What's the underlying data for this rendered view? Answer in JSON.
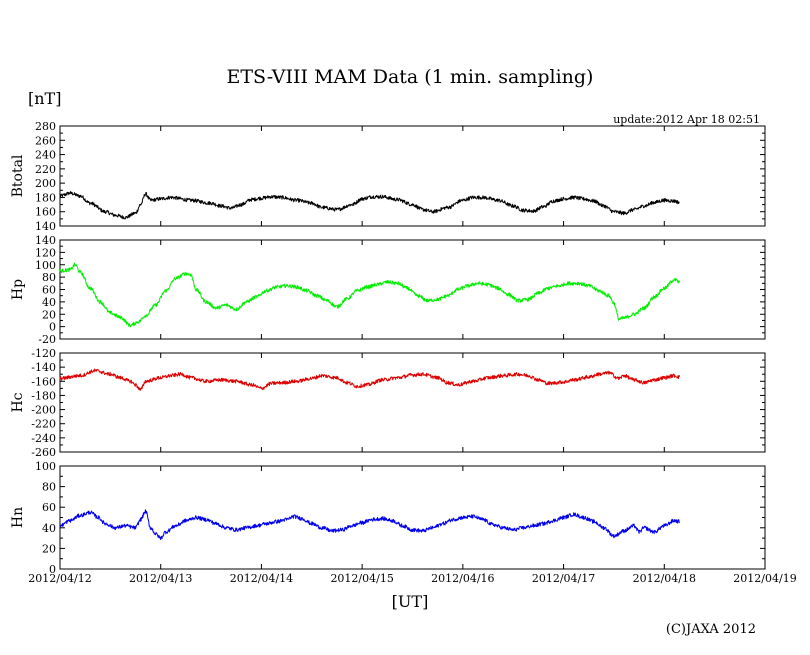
{
  "chart_data": {
    "type": "line",
    "title": "ETS-VIII MAM Data (1 min. sampling)",
    "unit_label": "[nT]",
    "update_text": "update:2012 Apr 18 02:51",
    "xlabel": "[UT]",
    "copyright": "(C)JAXA 2012",
    "x_ticks": [
      "2012/04/12",
      "2012/04/13",
      "2012/04/14",
      "2012/04/15",
      "2012/04/16",
      "2012/04/17",
      "2012/04/18",
      "2012/04/19"
    ],
    "x_range_days": [
      0,
      7
    ],
    "panels": [
      {
        "name": "Btotal",
        "color": "#000000",
        "ylim": [
          140,
          280
        ],
        "yticks": [
          140,
          160,
          180,
          200,
          220,
          240,
          260,
          280
        ],
        "points": [
          [
            0,
            182
          ],
          [
            0.1,
            186
          ],
          [
            0.2,
            182
          ],
          [
            0.3,
            172
          ],
          [
            0.45,
            160
          ],
          [
            0.55,
            155
          ],
          [
            0.65,
            152
          ],
          [
            0.75,
            158
          ],
          [
            0.8,
            170
          ],
          [
            0.85,
            185
          ],
          [
            0.9,
            176
          ],
          [
            1.0,
            178
          ],
          [
            1.1,
            180
          ],
          [
            1.3,
            176
          ],
          [
            1.5,
            172
          ],
          [
            1.6,
            168
          ],
          [
            1.7,
            165
          ],
          [
            1.8,
            170
          ],
          [
            1.9,
            177
          ],
          [
            2.0,
            179
          ],
          [
            2.1,
            181
          ],
          [
            2.2,
            180
          ],
          [
            2.35,
            176
          ],
          [
            2.5,
            172
          ],
          [
            2.6,
            166
          ],
          [
            2.75,
            163
          ],
          [
            2.9,
            170
          ],
          [
            3.0,
            178
          ],
          [
            3.1,
            181
          ],
          [
            3.2,
            181
          ],
          [
            3.35,
            177
          ],
          [
            3.5,
            170
          ],
          [
            3.6,
            163
          ],
          [
            3.7,
            160
          ],
          [
            3.85,
            166
          ],
          [
            4.0,
            176
          ],
          [
            4.1,
            180
          ],
          [
            4.2,
            180
          ],
          [
            4.35,
            176
          ],
          [
            4.5,
            168
          ],
          [
            4.6,
            162
          ],
          [
            4.7,
            161
          ],
          [
            4.8,
            167
          ],
          [
            4.9,
            175
          ],
          [
            5.0,
            178
          ],
          [
            5.1,
            180
          ],
          [
            5.2,
            178
          ],
          [
            5.3,
            175
          ],
          [
            5.4,
            168
          ],
          [
            5.5,
            160
          ],
          [
            5.6,
            158
          ],
          [
            5.7,
            163
          ],
          [
            5.8,
            168
          ],
          [
            5.9,
            173
          ],
          [
            6.0,
            176
          ],
          [
            6.1,
            175
          ],
          [
            6.15,
            173
          ]
        ]
      },
      {
        "name": "Hp",
        "color": "#00ee00",
        "ylim": [
          -20,
          140
        ],
        "yticks": [
          -20,
          0,
          20,
          40,
          60,
          80,
          100,
          120,
          140
        ],
        "points": [
          [
            0,
            90
          ],
          [
            0.1,
            92
          ],
          [
            0.15,
            100
          ],
          [
            0.2,
            88
          ],
          [
            0.3,
            62
          ],
          [
            0.4,
            40
          ],
          [
            0.5,
            22
          ],
          [
            0.6,
            15
          ],
          [
            0.7,
            2
          ],
          [
            0.78,
            8
          ],
          [
            0.85,
            18
          ],
          [
            0.95,
            35
          ],
          [
            1.05,
            58
          ],
          [
            1.15,
            78
          ],
          [
            1.25,
            86
          ],
          [
            1.3,
            84
          ],
          [
            1.35,
            60
          ],
          [
            1.45,
            40
          ],
          [
            1.55,
            30
          ],
          [
            1.65,
            35
          ],
          [
            1.75,
            28
          ],
          [
            1.85,
            40
          ],
          [
            1.95,
            48
          ],
          [
            2.05,
            58
          ],
          [
            2.15,
            64
          ],
          [
            2.25,
            66
          ],
          [
            2.35,
            64
          ],
          [
            2.45,
            58
          ],
          [
            2.55,
            50
          ],
          [
            2.65,
            42
          ],
          [
            2.75,
            32
          ],
          [
            2.85,
            45
          ],
          [
            2.95,
            58
          ],
          [
            3.05,
            64
          ],
          [
            3.15,
            68
          ],
          [
            3.25,
            72
          ],
          [
            3.35,
            70
          ],
          [
            3.45,
            62
          ],
          [
            3.55,
            50
          ],
          [
            3.65,
            42
          ],
          [
            3.75,
            44
          ],
          [
            3.85,
            50
          ],
          [
            3.95,
            60
          ],
          [
            4.05,
            66
          ],
          [
            4.15,
            70
          ],
          [
            4.25,
            68
          ],
          [
            4.35,
            62
          ],
          [
            4.45,
            52
          ],
          [
            4.55,
            42
          ],
          [
            4.65,
            44
          ],
          [
            4.75,
            54
          ],
          [
            4.85,
            62
          ],
          [
            4.95,
            66
          ],
          [
            5.05,
            70
          ],
          [
            5.15,
            70
          ],
          [
            5.25,
            66
          ],
          [
            5.35,
            58
          ],
          [
            5.45,
            50
          ],
          [
            5.5,
            38
          ],
          [
            5.55,
            12
          ],
          [
            5.6,
            14
          ],
          [
            5.7,
            20
          ],
          [
            5.8,
            30
          ],
          [
            5.9,
            48
          ],
          [
            6.0,
            62
          ],
          [
            6.1,
            76
          ],
          [
            6.15,
            72
          ]
        ]
      },
      {
        "name": "Hc",
        "color": "#dd0000",
        "ylim": [
          -260,
          -120
        ],
        "yticks": [
          -260,
          -240,
          -220,
          -200,
          -180,
          -160,
          -140,
          -120
        ],
        "points": [
          [
            0,
            -156
          ],
          [
            0.2,
            -152
          ],
          [
            0.35,
            -145
          ],
          [
            0.5,
            -150
          ],
          [
            0.6,
            -155
          ],
          [
            0.7,
            -160
          ],
          [
            0.75,
            -165
          ],
          [
            0.8,
            -172
          ],
          [
            0.85,
            -160
          ],
          [
            1.0,
            -155
          ],
          [
            1.1,
            -152
          ],
          [
            1.2,
            -150
          ],
          [
            1.3,
            -155
          ],
          [
            1.45,
            -160
          ],
          [
            1.6,
            -158
          ],
          [
            1.75,
            -160
          ],
          [
            1.9,
            -165
          ],
          [
            2.0,
            -170
          ],
          [
            2.1,
            -163
          ],
          [
            2.2,
            -162
          ],
          [
            2.35,
            -160
          ],
          [
            2.5,
            -156
          ],
          [
            2.6,
            -152
          ],
          [
            2.75,
            -155
          ],
          [
            2.85,
            -162
          ],
          [
            2.95,
            -167
          ],
          [
            3.05,
            -165
          ],
          [
            3.2,
            -158
          ],
          [
            3.35,
            -155
          ],
          [
            3.5,
            -151
          ],
          [
            3.6,
            -150
          ],
          [
            3.75,
            -155
          ],
          [
            3.85,
            -162
          ],
          [
            3.95,
            -165
          ],
          [
            4.1,
            -160
          ],
          [
            4.25,
            -155
          ],
          [
            4.4,
            -152
          ],
          [
            4.55,
            -150
          ],
          [
            4.65,
            -152
          ],
          [
            4.75,
            -158
          ],
          [
            4.85,
            -163
          ],
          [
            5.0,
            -161
          ],
          [
            5.1,
            -158
          ],
          [
            5.25,
            -154
          ],
          [
            5.35,
            -150
          ],
          [
            5.45,
            -148
          ],
          [
            5.55,
            -156
          ],
          [
            5.6,
            -152
          ],
          [
            5.7,
            -158
          ],
          [
            5.8,
            -162
          ],
          [
            5.9,
            -158
          ],
          [
            6.0,
            -155
          ],
          [
            6.1,
            -152
          ],
          [
            6.15,
            -154
          ]
        ]
      },
      {
        "name": "Hn",
        "color": "#0000ee",
        "ylim": [
          0,
          100
        ],
        "yticks": [
          0,
          20,
          40,
          60,
          80,
          100
        ],
        "points": [
          [
            0,
            42
          ],
          [
            0.1,
            47
          ],
          [
            0.2,
            52
          ],
          [
            0.3,
            55
          ],
          [
            0.38,
            50
          ],
          [
            0.45,
            44
          ],
          [
            0.55,
            40
          ],
          [
            0.65,
            42
          ],
          [
            0.75,
            40
          ],
          [
            0.8,
            48
          ],
          [
            0.85,
            56
          ],
          [
            0.9,
            40
          ],
          [
            0.95,
            34
          ],
          [
            1.0,
            30
          ],
          [
            1.05,
            36
          ],
          [
            1.15,
            42
          ],
          [
            1.25,
            47
          ],
          [
            1.35,
            50
          ],
          [
            1.45,
            48
          ],
          [
            1.55,
            44
          ],
          [
            1.65,
            40
          ],
          [
            1.75,
            38
          ],
          [
            1.85,
            40
          ],
          [
            1.95,
            42
          ],
          [
            2.05,
            44
          ],
          [
            2.15,
            46
          ],
          [
            2.25,
            48
          ],
          [
            2.32,
            51
          ],
          [
            2.4,
            49
          ],
          [
            2.5,
            44
          ],
          [
            2.6,
            40
          ],
          [
            2.7,
            37
          ],
          [
            2.8,
            38
          ],
          [
            2.9,
            42
          ],
          [
            3.0,
            45
          ],
          [
            3.1,
            48
          ],
          [
            3.2,
            49
          ],
          [
            3.3,
            47
          ],
          [
            3.4,
            42
          ],
          [
            3.5,
            38
          ],
          [
            3.6,
            37
          ],
          [
            3.7,
            40
          ],
          [
            3.8,
            44
          ],
          [
            3.9,
            48
          ],
          [
            4.0,
            50
          ],
          [
            4.1,
            51
          ],
          [
            4.2,
            48
          ],
          [
            4.3,
            43
          ],
          [
            4.4,
            40
          ],
          [
            4.5,
            38
          ],
          [
            4.6,
            40
          ],
          [
            4.7,
            42
          ],
          [
            4.8,
            44
          ],
          [
            4.9,
            47
          ],
          [
            5.0,
            50
          ],
          [
            5.1,
            53
          ],
          [
            5.2,
            50
          ],
          [
            5.3,
            46
          ],
          [
            5.4,
            40
          ],
          [
            5.5,
            32
          ],
          [
            5.6,
            37
          ],
          [
            5.7,
            42
          ],
          [
            5.75,
            36
          ],
          [
            5.8,
            40
          ],
          [
            5.9,
            36
          ],
          [
            6.0,
            42
          ],
          [
            6.1,
            47
          ],
          [
            6.15,
            46
          ]
        ]
      }
    ]
  }
}
